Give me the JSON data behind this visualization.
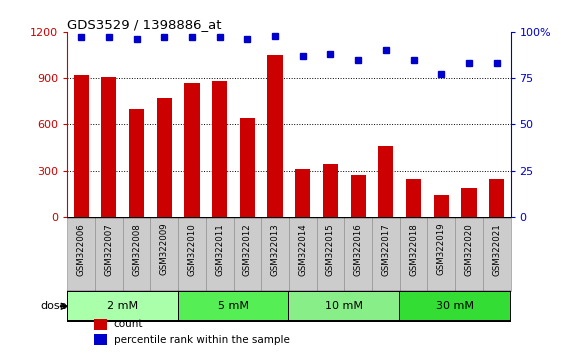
{
  "title": "GDS3529 / 1398886_at",
  "categories": [
    "GSM322006",
    "GSM322007",
    "GSM322008",
    "GSM322009",
    "GSM322010",
    "GSM322011",
    "GSM322012",
    "GSM322013",
    "GSM322014",
    "GSM322015",
    "GSM322016",
    "GSM322017",
    "GSM322018",
    "GSM322019",
    "GSM322020",
    "GSM322021"
  ],
  "counts": [
    920,
    910,
    700,
    770,
    870,
    880,
    640,
    1050,
    310,
    340,
    270,
    460,
    245,
    140,
    190,
    245
  ],
  "percentiles": [
    97,
    97,
    96,
    97,
    97,
    97,
    96,
    98,
    87,
    88,
    85,
    90,
    85,
    77,
    83,
    83
  ],
  "bar_color": "#cc0000",
  "dot_color": "#0000cc",
  "ylim_left": [
    0,
    1200
  ],
  "ylim_right": [
    0,
    100
  ],
  "yticks_left": [
    0,
    300,
    600,
    900,
    1200
  ],
  "yticks_right": [
    0,
    25,
    50,
    75,
    100
  ],
  "ytick_labels_right": [
    "0",
    "25",
    "50",
    "75",
    "100%"
  ],
  "dose_groups": [
    {
      "label": "2 mM",
      "start": 0,
      "end": 4,
      "color": "#aaffaa"
    },
    {
      "label": "5 mM",
      "start": 4,
      "end": 8,
      "color": "#55ee55"
    },
    {
      "label": "10 mM",
      "start": 8,
      "end": 12,
      "color": "#88ee88"
    },
    {
      "label": "30 mM",
      "start": 12,
      "end": 16,
      "color": "#33dd33"
    }
  ],
  "legend_items": [
    {
      "label": "count",
      "color": "#cc0000"
    },
    {
      "label": "percentile rank within the sample",
      "color": "#0000cc"
    }
  ],
  "title_color": "#000000",
  "left_axis_color": "#cc0000",
  "right_axis_color": "#0000cc",
  "background_color": "#ffffff",
  "plot_bg_color": "#ffffff",
  "xtick_bg_color": "#cccccc",
  "dose_bar_border": "#000000",
  "n_categories": 16
}
